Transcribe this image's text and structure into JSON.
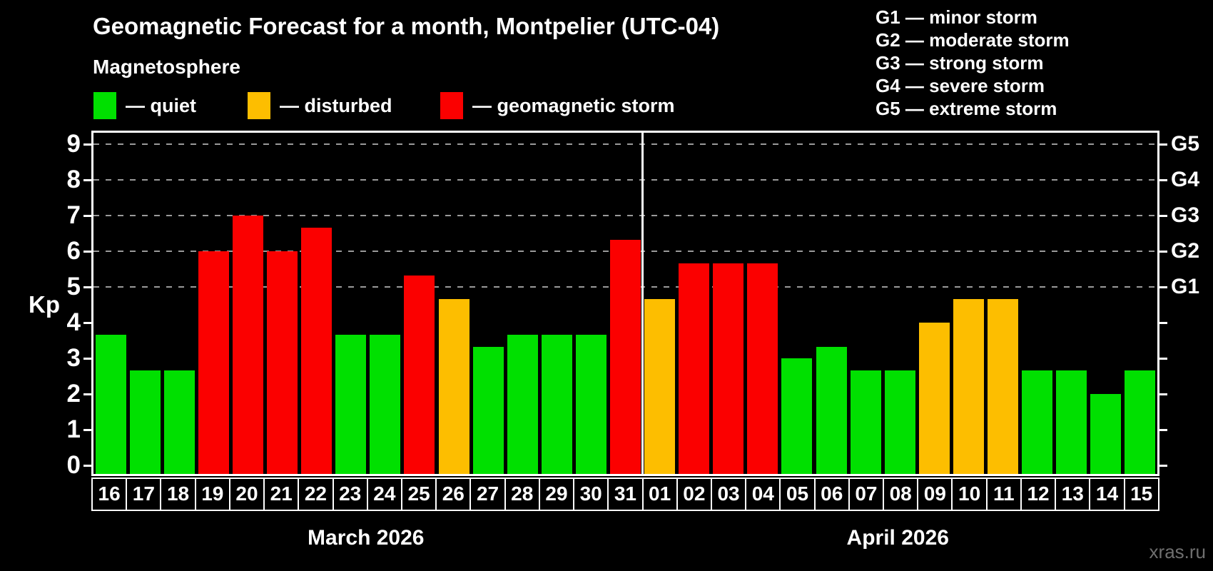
{
  "title": "Geomagnetic Forecast for a month, Montpelier (UTC-04)",
  "subtitle": "Magnetosphere",
  "legend": [
    {
      "label": "— quiet",
      "status": "quiet"
    },
    {
      "label": "— disturbed",
      "status": "disturbed"
    },
    {
      "label": "— geomagnetic storm",
      "status": "storm"
    }
  ],
  "storm_scale_legend": [
    "G1 — minor storm",
    "G2 — moderate storm",
    "G3 — strong storm",
    "G4 — severe storm",
    "G5 — extreme storm"
  ],
  "y_axis": {
    "label": "Kp",
    "ticks": [
      0,
      1,
      2,
      3,
      4,
      5,
      6,
      7,
      8,
      9
    ]
  },
  "right_axis": {
    "labels": [
      {
        "label": "G5",
        "kp": 9
      },
      {
        "label": "G4",
        "kp": 8
      },
      {
        "label": "G3",
        "kp": 7
      },
      {
        "label": "G2",
        "kp": 6
      },
      {
        "label": "G1",
        "kp": 5
      }
    ],
    "ticks": [
      0,
      1,
      2,
      3,
      4,
      5,
      6,
      7,
      8,
      9
    ]
  },
  "watermark": "xras.ru",
  "chart_data": {
    "type": "bar",
    "title": "Geomagnetic Forecast for a month, Montpelier (UTC-04)",
    "ylabel": "Kp",
    "ylim": [
      0,
      9
    ],
    "gridlines_kp": [
      5,
      6,
      7,
      8,
      9
    ],
    "grid": "dashed, horizontal, at G1-G5 levels only",
    "legend_position": "top-left",
    "colors": {
      "quiet": "#00E000",
      "disturbed": "#FDBE00",
      "storm": "#FB0000",
      "gridline": "#9A9A9A",
      "axis": "#FFFFFF",
      "background": "#000000"
    },
    "months": [
      {
        "label": "March 2026",
        "days": [
          {
            "day": "16",
            "kp": 3.67,
            "status": "quiet"
          },
          {
            "day": "17",
            "kp": 2.67,
            "status": "quiet"
          },
          {
            "day": "18",
            "kp": 2.67,
            "status": "quiet"
          },
          {
            "day": "19",
            "kp": 6.0,
            "status": "storm"
          },
          {
            "day": "20",
            "kp": 7.0,
            "status": "storm"
          },
          {
            "day": "21",
            "kp": 6.0,
            "status": "storm"
          },
          {
            "day": "22",
            "kp": 6.67,
            "status": "storm"
          },
          {
            "day": "23",
            "kp": 3.67,
            "status": "quiet"
          },
          {
            "day": "24",
            "kp": 3.67,
            "status": "quiet"
          },
          {
            "day": "25",
            "kp": 5.33,
            "status": "storm"
          },
          {
            "day": "26",
            "kp": 4.67,
            "status": "disturbed"
          },
          {
            "day": "27",
            "kp": 3.33,
            "status": "quiet"
          },
          {
            "day": "28",
            "kp": 3.67,
            "status": "quiet"
          },
          {
            "day": "29",
            "kp": 3.67,
            "status": "quiet"
          },
          {
            "day": "30",
            "kp": 3.67,
            "status": "quiet"
          },
          {
            "day": "31",
            "kp": 6.33,
            "status": "storm"
          }
        ]
      },
      {
        "label": "April 2026",
        "days": [
          {
            "day": "01",
            "kp": 4.67,
            "status": "disturbed"
          },
          {
            "day": "02",
            "kp": 5.67,
            "status": "storm"
          },
          {
            "day": "03",
            "kp": 5.67,
            "status": "storm"
          },
          {
            "day": "04",
            "kp": 5.67,
            "status": "storm"
          },
          {
            "day": "05",
            "kp": 3.0,
            "status": "quiet"
          },
          {
            "day": "06",
            "kp": 3.33,
            "status": "quiet"
          },
          {
            "day": "07",
            "kp": 2.67,
            "status": "quiet"
          },
          {
            "day": "08",
            "kp": 2.67,
            "status": "quiet"
          },
          {
            "day": "09",
            "kp": 4.0,
            "status": "disturbed"
          },
          {
            "day": "10",
            "kp": 4.67,
            "status": "disturbed"
          },
          {
            "day": "11",
            "kp": 4.67,
            "status": "disturbed"
          },
          {
            "day": "12",
            "kp": 2.67,
            "status": "quiet"
          },
          {
            "day": "13",
            "kp": 2.67,
            "status": "quiet"
          },
          {
            "day": "14",
            "kp": 2.0,
            "status": "quiet"
          },
          {
            "day": "15",
            "kp": 2.67,
            "status": "quiet"
          }
        ]
      }
    ]
  }
}
